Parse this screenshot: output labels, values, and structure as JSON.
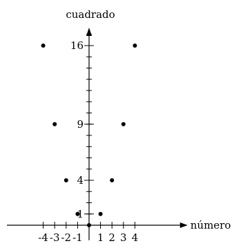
{
  "chart_data": {
    "type": "scatter",
    "xlabel": "número",
    "ylabel": "cuadrado",
    "xlim": [
      -4.6,
      8.6
    ],
    "ylim": [
      -0.6,
      17.6
    ],
    "x_ticks": [
      -4,
      -3,
      -2,
      -1,
      1,
      2,
      3,
      4
    ],
    "x_tick_labels": [
      "-4",
      "-3",
      "-2",
      "-1",
      "1",
      "2",
      "3",
      "4"
    ],
    "y_minor_ticks": [
      1,
      2,
      3,
      4,
      5,
      6,
      7,
      8,
      9,
      10,
      11,
      12,
      13,
      14,
      15,
      16,
      17
    ],
    "y_tick_labels": [
      {
        "value": 1,
        "label": "1"
      },
      {
        "value": 4,
        "label": "4"
      },
      {
        "value": 9,
        "label": "9"
      },
      {
        "value": 16,
        "label": "16"
      }
    ],
    "points": [
      {
        "x": -4,
        "y": 16
      },
      {
        "x": -3,
        "y": 9
      },
      {
        "x": -2,
        "y": 4
      },
      {
        "x": -1,
        "y": 1
      },
      {
        "x": 0,
        "y": 0
      },
      {
        "x": 1,
        "y": 1
      },
      {
        "x": 2,
        "y": 4
      },
      {
        "x": 3,
        "y": 9
      },
      {
        "x": 4,
        "y": 16
      }
    ],
    "grid": false,
    "legend": "none"
  }
}
